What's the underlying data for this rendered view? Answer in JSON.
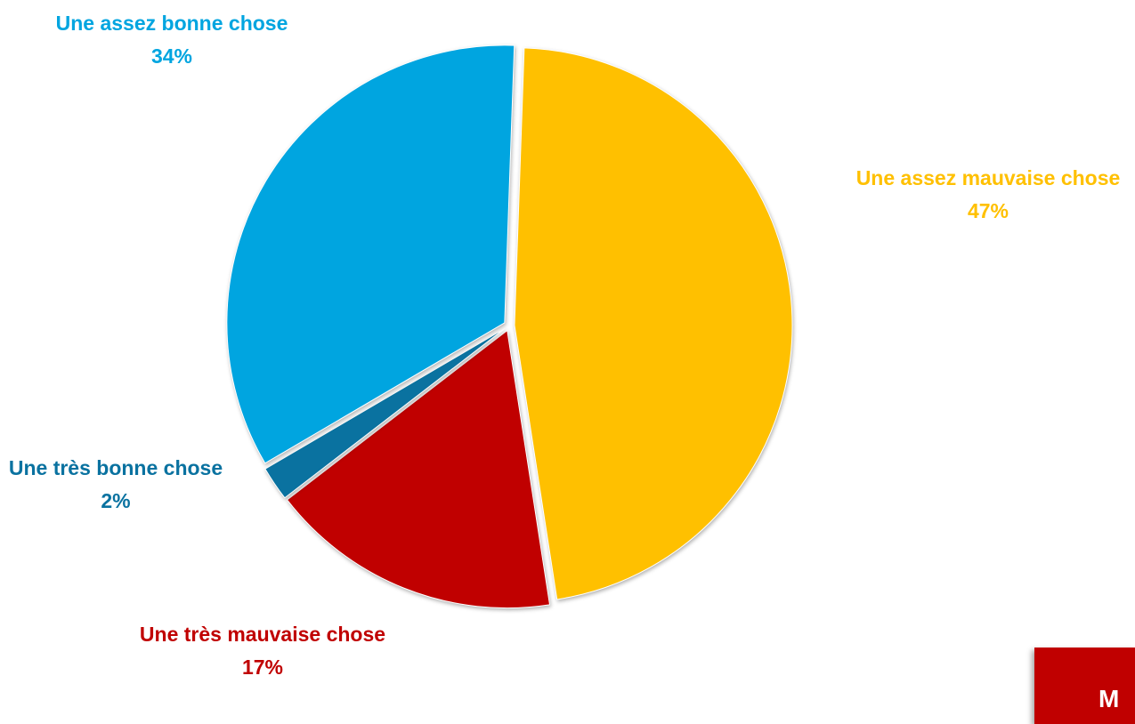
{
  "chart_data": {
    "type": "pie",
    "categories": [
      "Une assez mauvaise chose",
      "Une très mauvaise chose",
      "Une très bonne chose",
      "Une assez bonne chose"
    ],
    "values": [
      47,
      17,
      2,
      34
    ],
    "value_labels": [
      "47%",
      "17%",
      "2%",
      "34%"
    ],
    "colors": [
      "#FFC000",
      "#C00000",
      "#0A72A0",
      "#00A5E0"
    ]
  },
  "footer_tab": "M"
}
